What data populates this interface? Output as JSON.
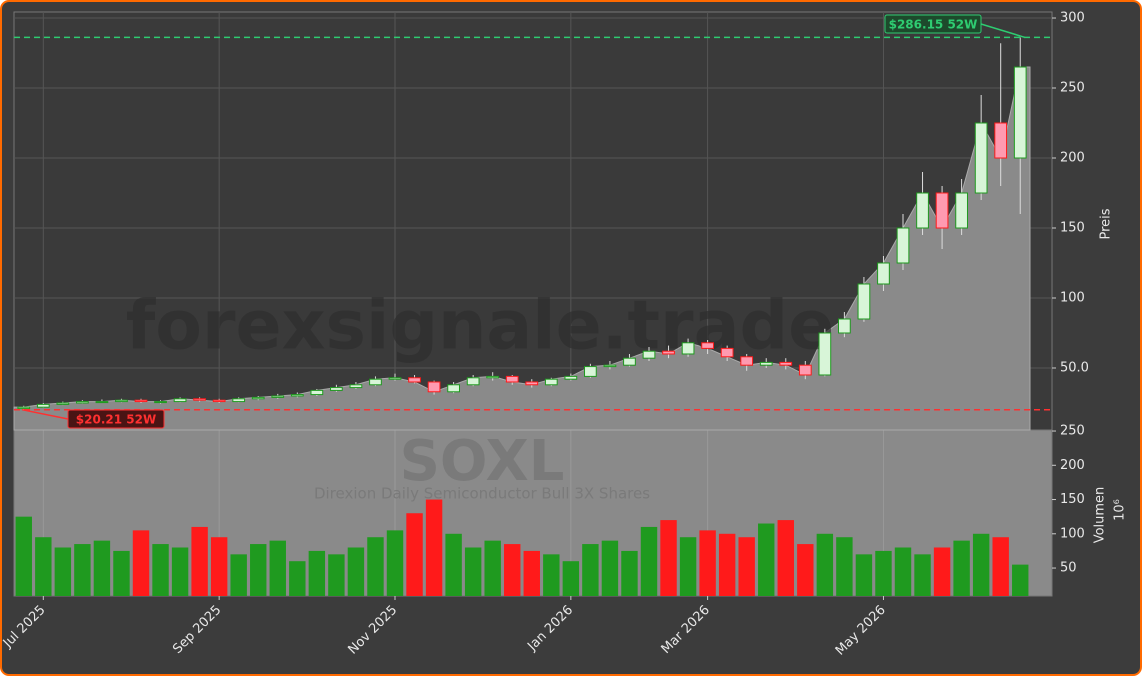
{
  "chart_data": {
    "type": "candlestick",
    "title": "SOXL",
    "subtitle": "Direxion Daily Semiconductor Bull 3X Shares",
    "watermark": "forexsignale.trade",
    "y_label": "Preis",
    "volume_label": "Volumen",
    "volume_unit": "10⁶",
    "categories": [
      null,
      "Jul 2025",
      null,
      null,
      null,
      null,
      null,
      null,
      null,
      null,
      "Sep 2025",
      null,
      null,
      null,
      null,
      null,
      null,
      null,
      null,
      "Nov 2025",
      null,
      null,
      null,
      null,
      null,
      null,
      null,
      null,
      "Jan 2026",
      null,
      null,
      null,
      null,
      null,
      null,
      "Mar 2026",
      null,
      null,
      null,
      null,
      null,
      null,
      null,
      null,
      "May 2026",
      null,
      null,
      null,
      null,
      null,
      null,
      null
    ],
    "open": [
      21,
      22,
      24,
      25,
      26,
      26,
      27,
      26,
      26,
      28,
      27,
      26,
      28,
      29,
      30,
      31,
      34,
      36,
      38,
      42,
      43,
      40,
      33,
      38,
      43,
      44,
      40,
      38,
      42,
      44,
      51,
      52,
      57,
      62,
      60,
      68,
      64,
      58,
      52,
      54,
      52,
      45,
      75,
      85,
      110,
      125,
      150,
      175,
      150,
      175,
      225,
      200
    ],
    "high": [
      23,
      25,
      26,
      27,
      27.5,
      28,
      28,
      27,
      29,
      29,
      28,
      29,
      30,
      31.5,
      32.5,
      35,
      38,
      40,
      44,
      46,
      45,
      41,
      40,
      45,
      47,
      45,
      42,
      43,
      46,
      53,
      55,
      60,
      65,
      66,
      71,
      70,
      66,
      60,
      57,
      57,
      55,
      78,
      90,
      115,
      130,
      160,
      190,
      180,
      185,
      245,
      282,
      286.15
    ],
    "low": [
      20.21,
      21.5,
      23.5,
      24.5,
      25,
      25.5,
      25,
      24.5,
      25.5,
      26,
      25,
      25.5,
      27,
      28,
      29,
      30,
      33,
      35,
      37,
      41,
      39,
      31,
      32,
      37,
      41,
      38,
      36,
      37,
      41,
      43,
      49,
      51,
      55,
      57,
      58,
      60,
      55,
      48,
      50,
      49,
      42,
      44,
      72,
      83,
      105,
      120,
      145,
      135,
      145,
      170,
      180,
      160
    ],
    "close": [
      22,
      24,
      25,
      26,
      26,
      27,
      26,
      26,
      28,
      27,
      26,
      28,
      29,
      30,
      31,
      34,
      36,
      38,
      42,
      43,
      40,
      33,
      38,
      43,
      44,
      40,
      38,
      42,
      44,
      51,
      52,
      57,
      62,
      60,
      68,
      64,
      58,
      52,
      54,
      52,
      45,
      75,
      85,
      110,
      125,
      150,
      175,
      150,
      175,
      225,
      200,
      265
    ],
    "volume": [
      125,
      95,
      80,
      85,
      90,
      75,
      105,
      85,
      80,
      110,
      95,
      70,
      85,
      90,
      60,
      75,
      70,
      80,
      95,
      105,
      130,
      150,
      100,
      80,
      90,
      85,
      75,
      70,
      60,
      85,
      90,
      75,
      110,
      120,
      95,
      105,
      100,
      95,
      115,
      120,
      85,
      100,
      95,
      70,
      75,
      80,
      70,
      80,
      90,
      100,
      95,
      55
    ],
    "up_color": "#1f9a1f",
    "down_color": "#ff1a1a",
    "area_color": "#8a8a8a",
    "ylim": [
      5.7,
      304.3
    ],
    "yticks": [
      {
        "value": 50,
        "label": "50.0"
      },
      100,
      150,
      200,
      250,
      300
    ],
    "volume_ylim": [
      9.2,
      251.5
    ],
    "volume_yticks": [
      50,
      100,
      150,
      200,
      250
    ],
    "grid": true,
    "annotations": [
      {
        "text": "$286.15 52W",
        "value": 286.15,
        "color": "#2ecc71"
      },
      {
        "text": "$20.21 52W",
        "value": 20.21,
        "color": "#ff3030"
      }
    ]
  }
}
